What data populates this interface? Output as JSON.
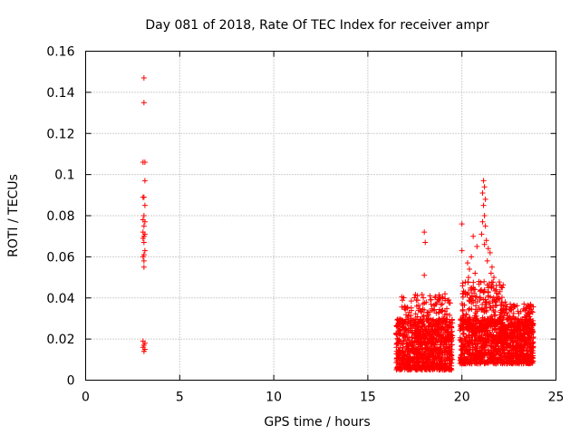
{
  "chart_data": {
    "type": "scatter",
    "title": "Day 081 of 2018, Rate Of TEC Index for receiver ampr",
    "xlabel": "GPS time / hours",
    "ylabel": "ROTI / TECUs",
    "xlim": [
      0,
      25
    ],
    "ylim": [
      0,
      0.16
    ],
    "x_ticks": [
      0,
      5,
      10,
      15,
      20,
      25
    ],
    "y_ticks": [
      0,
      0.02,
      0.04,
      0.06,
      0.08,
      0.1,
      0.12,
      0.14,
      0.16
    ],
    "x_tick_labels": [
      "0",
      "5",
      "10",
      "15",
      "20",
      "25"
    ],
    "y_tick_labels": [
      "0",
      "0.02",
      "0.04",
      "0.06",
      "0.08",
      "0.1",
      "0.12",
      "0.14",
      "0.16"
    ],
    "grid": true,
    "marker": "+",
    "series": [
      {
        "name": "ROTI",
        "color": "#ff0000",
        "points": [
          [
            3.1,
            0.147
          ],
          [
            3.1,
            0.135
          ],
          [
            3.05,
            0.106
          ],
          [
            3.15,
            0.106
          ],
          [
            3.15,
            0.097
          ],
          [
            3.1,
            0.089
          ],
          [
            3.05,
            0.089
          ],
          [
            3.15,
            0.085
          ],
          [
            3.1,
            0.08
          ],
          [
            3.05,
            0.078
          ],
          [
            3.15,
            0.077
          ],
          [
            3.1,
            0.075
          ],
          [
            3.05,
            0.072
          ],
          [
            3.15,
            0.071
          ],
          [
            3.1,
            0.07
          ],
          [
            3.05,
            0.069
          ],
          [
            3.1,
            0.067
          ],
          [
            3.15,
            0.063
          ],
          [
            3.1,
            0.061
          ],
          [
            3.05,
            0.06
          ],
          [
            3.1,
            0.058
          ],
          [
            3.1,
            0.055
          ],
          [
            3.05,
            0.019
          ],
          [
            3.15,
            0.018
          ],
          [
            3.1,
            0.017
          ],
          [
            3.05,
            0.016
          ],
          [
            3.15,
            0.015
          ],
          [
            3.1,
            0.014
          ],
          [
            18.0,
            0.072
          ],
          [
            18.05,
            0.067
          ],
          [
            18.0,
            0.051
          ],
          [
            20.0,
            0.076
          ],
          [
            20.0,
            0.063
          ],
          [
            20.5,
            0.06
          ],
          [
            20.6,
            0.07
          ],
          [
            20.8,
            0.065
          ],
          [
            21.15,
            0.097
          ],
          [
            21.2,
            0.094
          ],
          [
            21.1,
            0.091
          ],
          [
            21.25,
            0.088
          ],
          [
            21.15,
            0.085
          ],
          [
            21.2,
            0.08
          ],
          [
            21.1,
            0.077
          ],
          [
            21.25,
            0.075
          ],
          [
            21.05,
            0.071
          ],
          [
            21.3,
            0.068
          ],
          [
            21.2,
            0.066
          ],
          [
            21.4,
            0.064
          ],
          [
            21.5,
            0.062
          ],
          [
            21.35,
            0.058
          ],
          [
            21.6,
            0.055
          ],
          [
            21.55,
            0.052
          ],
          [
            21.7,
            0.05
          ],
          [
            21.45,
            0.047
          ],
          [
            20.3,
            0.057
          ],
          [
            20.4,
            0.054
          ],
          [
            20.35,
            0.05
          ],
          [
            20.7,
            0.052
          ],
          [
            20.9,
            0.048
          ],
          [
            20.6,
            0.045
          ],
          [
            16.8,
            0.029
          ],
          [
            17.2,
            0.033
          ],
          [
            17.6,
            0.036
          ],
          [
            18.3,
            0.041
          ],
          [
            18.7,
            0.038
          ],
          [
            19.1,
            0.042
          ],
          [
            19.3,
            0.039
          ],
          [
            22.3,
            0.038
          ],
          [
            22.8,
            0.036
          ],
          [
            23.3,
            0.037
          ],
          [
            23.6,
            0.035
          ]
        ]
      }
    ],
    "dense_clusters": [
      {
        "x_range": [
          16.5,
          19.5
        ],
        "y_range": [
          0.005,
          0.03
        ],
        "count": 900
      },
      {
        "x_range": [
          16.8,
          19.4
        ],
        "y_range": [
          0.02,
          0.042
        ],
        "count": 180
      },
      {
        "x_range": [
          19.9,
          23.8
        ],
        "y_range": [
          0.008,
          0.03
        ],
        "count": 1100
      },
      {
        "x_range": [
          20.0,
          22.2
        ],
        "y_range": [
          0.025,
          0.048
        ],
        "count": 220
      },
      {
        "x_range": [
          22.0,
          23.8
        ],
        "y_range": [
          0.02,
          0.037
        ],
        "count": 160
      }
    ]
  }
}
